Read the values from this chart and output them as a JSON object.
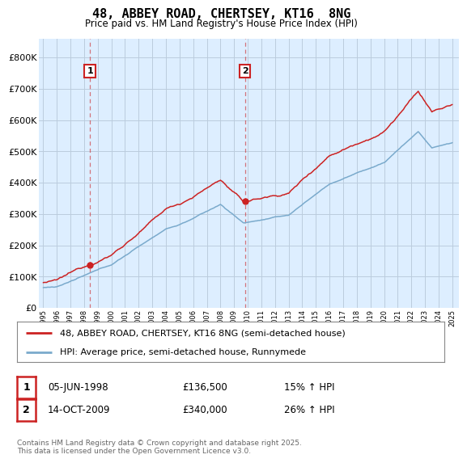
{
  "title": "48, ABBEY ROAD, CHERTSEY, KT16  8NG",
  "subtitle": "Price paid vs. HM Land Registry's House Price Index (HPI)",
  "xlim_start": 1994.7,
  "xlim_end": 2025.5,
  "ylim": [
    0,
    860000
  ],
  "yticks": [
    0,
    100000,
    200000,
    300000,
    400000,
    500000,
    600000,
    700000,
    800000
  ],
  "ytick_labels": [
    "£0",
    "£100K",
    "£200K",
    "£300K",
    "£400K",
    "£500K",
    "£600K",
    "£700K",
    "£800K"
  ],
  "red_color": "#cc2222",
  "blue_color": "#7aaacc",
  "bg_color": "#ddeeff",
  "grid_color": "#bbccdd",
  "sale1": {
    "year": 1998.43,
    "price": 136500,
    "label": "1",
    "date": "05-JUN-1998",
    "amount": "£136,500",
    "change": "15% ↑ HPI"
  },
  "sale2": {
    "year": 2009.79,
    "price": 340000,
    "label": "2",
    "date": "14-OCT-2009",
    "amount": "£340,000",
    "change": "26% ↑ HPI"
  },
  "legend_line1": "48, ABBEY ROAD, CHERTSEY, KT16 8NG (semi-detached house)",
  "legend_line2": "HPI: Average price, semi-detached house, Runnymede",
  "footer": "Contains HM Land Registry data © Crown copyright and database right 2025.\nThis data is licensed under the Open Government Licence v3.0."
}
